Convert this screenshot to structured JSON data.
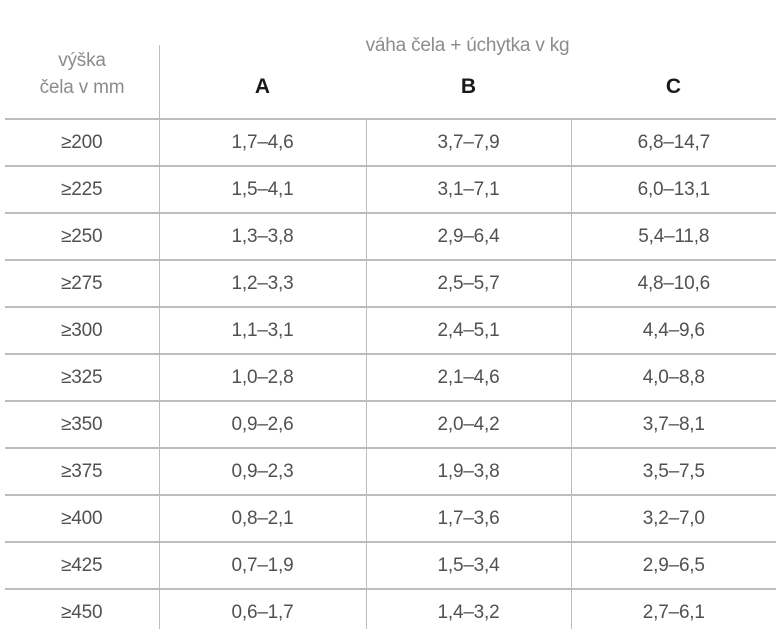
{
  "table": {
    "row_header": {
      "line1": "výška",
      "line2": "čela v mm"
    },
    "group_header": "váha čela + úchytka v kg",
    "columns": [
      "A",
      "B",
      "C"
    ],
    "rows": [
      {
        "label": "≥200",
        "a": "1,7–4,6",
        "b": "3,7–7,9",
        "c": "6,8–14,7"
      },
      {
        "label": "≥225",
        "a": "1,5–4,1",
        "b": "3,1–7,1",
        "c": "6,0–13,1"
      },
      {
        "label": "≥250",
        "a": "1,3–3,8",
        "b": "2,9–6,4",
        "c": "5,4–11,8"
      },
      {
        "label": "≥275",
        "a": "1,2–3,3",
        "b": "2,5–5,7",
        "c": "4,8–10,6"
      },
      {
        "label": "≥300",
        "a": "1,1–3,1",
        "b": "2,4–5,1",
        "c": "4,4–9,6"
      },
      {
        "label": "≥325",
        "a": "1,0–2,8",
        "b": "2,1–4,6",
        "c": "4,0–8,8"
      },
      {
        "label": "≥350",
        "a": "0,9–2,6",
        "b": "2,0–4,2",
        "c": "3,7–8,1"
      },
      {
        "label": "≥375",
        "a": "0,9–2,3",
        "b": "1,9–3,8",
        "c": "3,5–7,5"
      },
      {
        "label": "≥400",
        "a": "0,8–2,1",
        "b": "1,7–3,6",
        "c": "3,2–7,0"
      },
      {
        "label": "≥425",
        "a": "0,7–1,9",
        "b": "1,5–3,4",
        "c": "2,9–6,5"
      },
      {
        "label": "≥450",
        "a": "0,6–1,7",
        "b": "1,4–3,2",
        "c": "2,7–6,1"
      }
    ]
  },
  "colors": {
    "grid_line": "#bdbdbd",
    "text_muted": "#8c8c8c",
    "text_data": "#515151",
    "text_strong": "#1a1a1a",
    "background": "#ffffff"
  }
}
